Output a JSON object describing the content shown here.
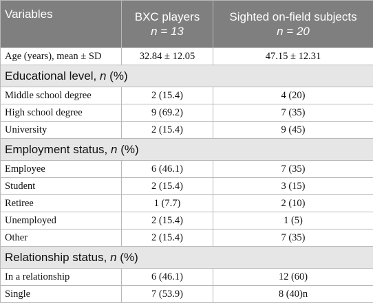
{
  "header": {
    "variables": "Variables",
    "group1_name": "BXC players",
    "group1_n": "n = 13",
    "group2_name": "Sighted on-field subjects",
    "group2_n": "n = 20"
  },
  "age_row": {
    "label": "Age (years), mean ± SD",
    "group1": "32.84 ± 12.05",
    "group2": "47.15 ± 12.31"
  },
  "sections": {
    "education": {
      "title": "Educational level, ",
      "n": "n",
      "pct": " (%)",
      "rows": [
        {
          "label": "Middle school degree",
          "group1": "2 (15.4)",
          "group2": "4 (20)"
        },
        {
          "label": "High school degree",
          "group1": "9 (69.2)",
          "group2": "7 (35)"
        },
        {
          "label": "University",
          "group1": "2 (15.4)",
          "group2": "9 (45)"
        }
      ]
    },
    "employment": {
      "title": "Employment status, ",
      "n": "n",
      "pct": " (%)",
      "rows": [
        {
          "label": "Employee",
          "group1": "6 (46.1)",
          "group2": "7 (35)"
        },
        {
          "label": "Student",
          "group1": "2 (15.4)",
          "group2": "3 (15)"
        },
        {
          "label": "Retiree",
          "group1": "1 (7.7)",
          "group2": "2 (10)"
        },
        {
          "label": "Unemployed",
          "group1": "2 (15.4)",
          "group2": "1 (5)"
        },
        {
          "label": "Other",
          "group1": "2 (15.4)",
          "group2": "7 (35)"
        }
      ]
    },
    "relationship": {
      "title": "Relationship status, ",
      "n": "n",
      "pct": " (%)",
      "rows": [
        {
          "label": "In a relationship",
          "group1": "6 (46.1)",
          "group2": "12 (60)"
        },
        {
          "label": "Single",
          "group1": "7 (53.9)",
          "group2": "8 (40)n"
        }
      ]
    }
  }
}
